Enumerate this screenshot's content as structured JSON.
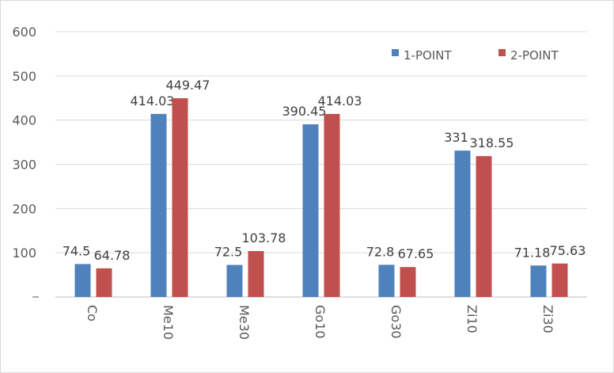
{
  "chart_data": {
    "type": "bar",
    "categories": [
      "Co",
      "Me10",
      "Me30",
      "Go10",
      "Go30",
      "Zi10",
      "Zi30"
    ],
    "series": [
      {
        "name": "1-POINT",
        "color": "#4F81BD",
        "values": [
          74.5,
          414.03,
          72.5,
          390.45,
          72.8,
          331,
          71.18
        ]
      },
      {
        "name": "2-POINT",
        "color": "#C0504D",
        "values": [
          64.78,
          449.47,
          103.78,
          414.03,
          67.65,
          318.55,
          75.63
        ]
      }
    ],
    "y_ticks": [
      "",
      "100",
      "200",
      "300",
      "400",
      "500",
      "600"
    ],
    "ylim": [
      0,
      600
    ],
    "grid": true,
    "legend": "top-right",
    "xlabel_rotation": 90
  }
}
